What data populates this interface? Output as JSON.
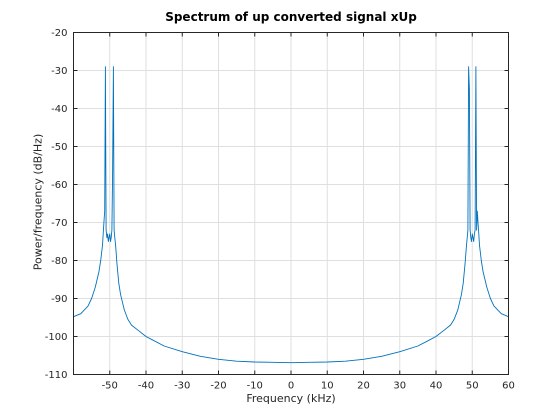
{
  "chart_data": {
    "type": "line",
    "title": "Spectrum of up converted signal xUp",
    "xlabel": "Frequency (kHz)",
    "ylabel": "Power/frequency (dB/Hz)",
    "xlim": [
      -60,
      60
    ],
    "ylim": [
      -110,
      -20
    ],
    "xticks": [
      -50,
      -40,
      -30,
      -20,
      -10,
      0,
      10,
      20,
      30,
      40,
      50,
      60
    ],
    "yticks": [
      -20,
      -30,
      -40,
      -50,
      -60,
      -70,
      -80,
      -90,
      -100,
      -110
    ],
    "xtick_labels": [
      "-50",
      "-40",
      "-30",
      "-20",
      "-10",
      "0",
      "10",
      "20",
      "30",
      "40",
      "50",
      "60"
    ],
    "ytick_labels": [
      "-20",
      "-30",
      "-40",
      "-50",
      "-60",
      "-70",
      "-80",
      "-90",
      "-100",
      "-110"
    ],
    "grid": true,
    "line_color": "#0072bd",
    "series": [
      {
        "x": [
          -60,
          -58,
          -56,
          -55,
          -54,
          -53,
          -52.5,
          -52,
          -51.8,
          -51.6,
          -51.4,
          -51.2,
          -51,
          -50.8,
          -50.6,
          -50.4,
          -50.2,
          -50,
          -49.8,
          -49.6,
          -49.4,
          -49.2,
          -49,
          -48.8,
          -48.6,
          -48.4,
          -48,
          -47.5,
          -47,
          -46,
          -45,
          -44,
          -42,
          -40,
          -38,
          -35,
          -30,
          -25,
          -20,
          -15,
          -10,
          -5,
          0,
          5,
          10,
          15,
          20,
          25,
          30,
          35,
          38,
          40,
          42,
          44,
          45,
          46,
          47,
          47.5,
          48,
          48.4,
          48.6,
          48.8,
          49,
          49.2,
          49.4,
          49.6,
          49.8,
          50,
          50.2,
          50.4,
          50.6,
          50.8,
          51,
          51.2,
          51.4,
          51.6,
          51.8,
          52,
          52.5,
          53,
          54,
          55,
          56,
          58,
          60
        ],
        "y": [
          -94.8,
          -94,
          -92,
          -90,
          -87,
          -83,
          -80,
          -76,
          -73,
          -70,
          -67,
          -29,
          -72,
          -74,
          -73,
          -75,
          -74,
          -73,
          -75,
          -74,
          -72,
          -57,
          -29,
          -72,
          -74,
          -76,
          -81,
          -86,
          -89,
          -93,
          -95.5,
          -97,
          -98.5,
          -100,
          -101,
          -102.5,
          -104,
          -105.2,
          -106,
          -106.5,
          -106.7,
          -106.8,
          -106.9,
          -106.8,
          -106.7,
          -106.5,
          -106,
          -105.2,
          -104,
          -102.5,
          -101,
          -100,
          -98.5,
          -97,
          -95.5,
          -93,
          -89,
          -86,
          -81,
          -76,
          -74,
          -72,
          -29,
          -35,
          -72,
          -74,
          -75,
          -73,
          -74,
          -75,
          -73,
          -72,
          -29,
          -72,
          -67,
          -70,
          -73,
          -76,
          -80,
          -83,
          -87,
          -90,
          -92,
          -94,
          -94.8
        ]
      }
    ]
  }
}
